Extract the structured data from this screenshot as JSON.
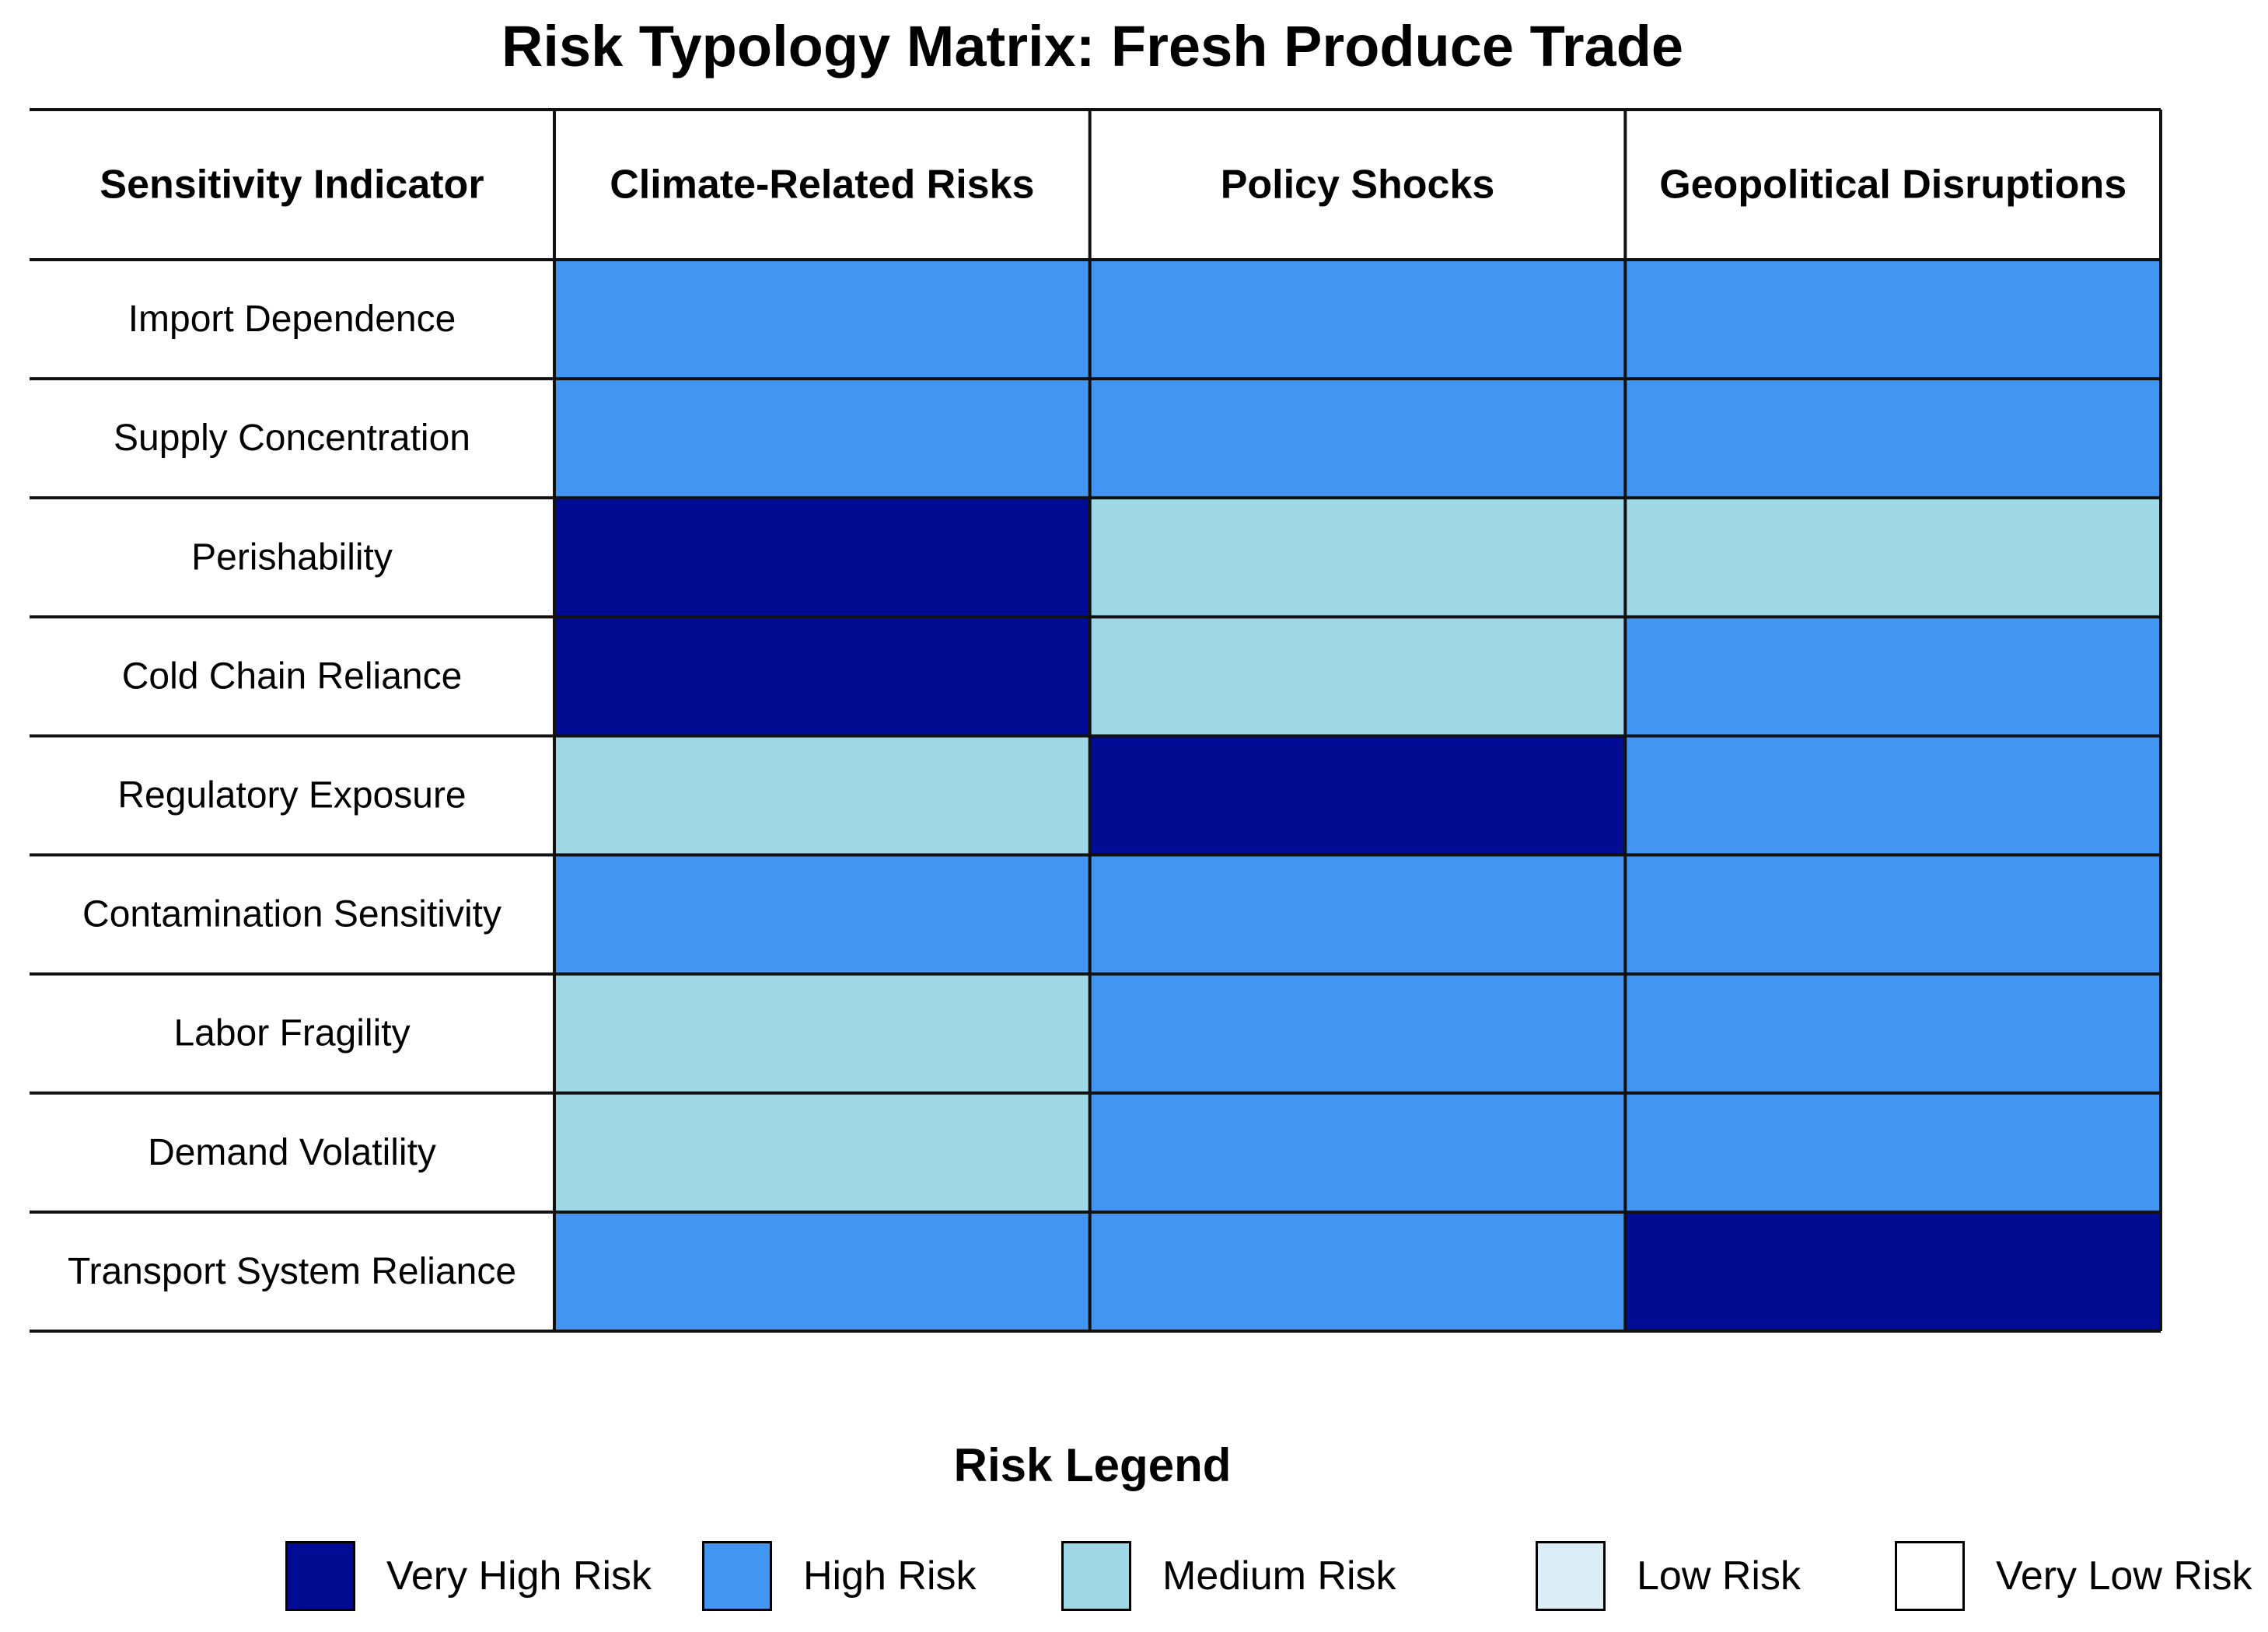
{
  "chart_data": {
    "type": "heatmap",
    "title": "Risk Typology Matrix: Fresh Produce Trade",
    "row_header": "Sensitivity Indicator",
    "columns": [
      "Climate-Related Risks",
      "Policy Shocks",
      "Geopolitical Disruptions"
    ],
    "rows": [
      "Import Dependence",
      "Supply Concentration",
      "Perishability",
      "Cold Chain Reliance",
      "Regulatory Exposure",
      "Contamination Sensitivity",
      "Labor Fragility",
      "Demand Volatility",
      "Transport System Reliance"
    ],
    "values": [
      [
        "High Risk",
        "High Risk",
        "High Risk"
      ],
      [
        "High Risk",
        "High Risk",
        "High Risk"
      ],
      [
        "Very High Risk",
        "Medium Risk",
        "Medium Risk"
      ],
      [
        "Very High Risk",
        "Medium Risk",
        "High Risk"
      ],
      [
        "Medium Risk",
        "Very High Risk",
        "High Risk"
      ],
      [
        "High Risk",
        "High Risk",
        "High Risk"
      ],
      [
        "Medium Risk",
        "High Risk",
        "High Risk"
      ],
      [
        "Medium Risk",
        "High Risk",
        "High Risk"
      ],
      [
        "High Risk",
        "High Risk",
        "Very High Risk"
      ]
    ],
    "legend_title": "Risk Legend",
    "legend": [
      {
        "label": "Very High Risk",
        "color": "#000c93"
      },
      {
        "label": "High Risk",
        "color": "#4296f1"
      },
      {
        "label": "Medium Risk",
        "color": "#9ed8e7"
      },
      {
        "label": "Low Risk",
        "color": "#dbeef8"
      },
      {
        "label": "Very Low Risk",
        "color": "#ffffff"
      }
    ]
  }
}
